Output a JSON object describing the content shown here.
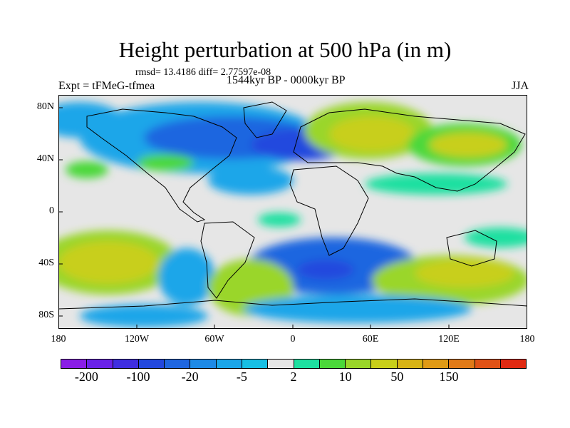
{
  "title": "Height perturbation at 500 hPa (in m)",
  "stats": "rmsd= 13.4186 diff= 2.77597e-08",
  "expt": "Expt = tFMeG-tfmea",
  "period": "1544kyr BP - 0000kyr BP",
  "season": "JJA",
  "lat_labels": [
    "80N",
    "40N",
    "0",
    "40S",
    "80S"
  ],
  "lon_labels": [
    "180",
    "120W",
    "60W",
    "0",
    "60E",
    "120E",
    "180"
  ],
  "colorbar": {
    "colors": [
      "#8a1ee6",
      "#6a22e8",
      "#3f2ee0",
      "#2348de",
      "#1f66e0",
      "#1e8ae6",
      "#1ba6e9",
      "#17bfe4",
      "#e6e6e6",
      "#1ee0a0",
      "#4bd83a",
      "#9ad62a",
      "#c8cf1a",
      "#d7b315",
      "#e09a15",
      "#e07a18",
      "#e05216",
      "#e02a12"
    ],
    "labels": [
      "-200",
      "-100",
      "-20",
      "-5",
      "2",
      "10",
      "50",
      "150"
    ]
  }
}
